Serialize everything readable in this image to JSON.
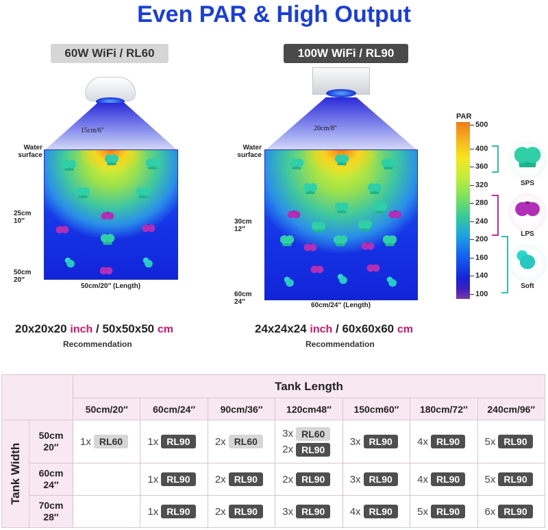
{
  "title": "Even PAR & High Output",
  "models": {
    "a": {
      "tag": "60W WiFi / RL60",
      "cone_label": "15cm/6″",
      "water_label": "Water surface",
      "mid_label_cm": "25cm",
      "mid_label_in": "10″",
      "bottom_label_cm": "50cm",
      "bottom_label_in": "20″",
      "length_label": "50cm/20″ (Length)",
      "dims_in": "20x20x20",
      "unit_in": "inch",
      "sep": "/",
      "dims_cm": "50x50x50",
      "unit_cm": "cm",
      "recommendation": "Recommendation"
    },
    "b": {
      "tag": "100W WiFi / RL90",
      "cone_label": "20cm/8″",
      "water_label": "Water surface",
      "mid_label_cm": "30cm",
      "mid_label_in": "12″",
      "bottom_label_cm": "60cm",
      "bottom_label_in": "24″",
      "length_label": "60cm/24″ (Length)",
      "dims_in": "24x24x24",
      "unit_in": "inch",
      "sep": "/",
      "dims_cm": "60x60x60",
      "unit_cm": "cm",
      "recommendation": "Recommendation"
    }
  },
  "par_scale": {
    "title": "PAR",
    "ticks": [
      "500",
      "400",
      "360",
      "320",
      "280",
      "240",
      "200",
      "160",
      "140",
      "100"
    ],
    "corals": {
      "sps": "SPS",
      "lps": "LPS",
      "soft": "Soft"
    },
    "colors": {
      "sps": "#2fbf9f",
      "lps": "#c42ca0",
      "soft": "#2fbfb5"
    }
  },
  "table": {
    "header": "Tank Length",
    "side_header": "Tank Width",
    "columns": [
      "50cm/20″",
      "60cm/24″",
      "90cm/36″",
      "120cm48″",
      "150cm60″",
      "180cm/72″",
      "240cm/96″"
    ],
    "rows": [
      {
        "width_cm": "50cm",
        "width_in": "20″",
        "cells": [
          [
            {
              "qty": "1x",
              "model": "RL60"
            }
          ],
          [
            {
              "qty": "1x",
              "model": "RL90"
            }
          ],
          [
            {
              "qty": "2x",
              "model": "RL60"
            }
          ],
          [
            {
              "qty": "3x",
              "model": "RL60"
            },
            {
              "qty": "2x",
              "model": "RL90"
            }
          ],
          [
            {
              "qty": "3x",
              "model": "RL90"
            }
          ],
          [
            {
              "qty": "4x",
              "model": "RL90"
            }
          ],
          [
            {
              "qty": "5x",
              "model": "RL90"
            }
          ]
        ]
      },
      {
        "width_cm": "60cm",
        "width_in": "24″",
        "cells": [
          [],
          [
            {
              "qty": "1x",
              "model": "RL90"
            }
          ],
          [
            {
              "qty": "2x",
              "model": "RL90"
            }
          ],
          [
            {
              "qty": "2x",
              "model": "RL90"
            }
          ],
          [
            {
              "qty": "3x",
              "model": "RL90"
            }
          ],
          [
            {
              "qty": "4x",
              "model": "RL90"
            }
          ],
          [
            {
              "qty": "5x",
              "model": "RL90"
            }
          ]
        ]
      },
      {
        "width_cm": "70cm",
        "width_in": "28″",
        "cells": [
          [],
          [
            {
              "qty": "1x",
              "model": "RL90"
            }
          ],
          [
            {
              "qty": "2x",
              "model": "RL90"
            }
          ],
          [
            {
              "qty": "3x",
              "model": "RL90"
            }
          ],
          [
            {
              "qty": "4x",
              "model": "RL90"
            }
          ],
          [
            {
              "qty": "5x",
              "model": "RL90"
            }
          ],
          [
            {
              "qty": "6x",
              "model": "RL90"
            }
          ]
        ]
      }
    ]
  }
}
